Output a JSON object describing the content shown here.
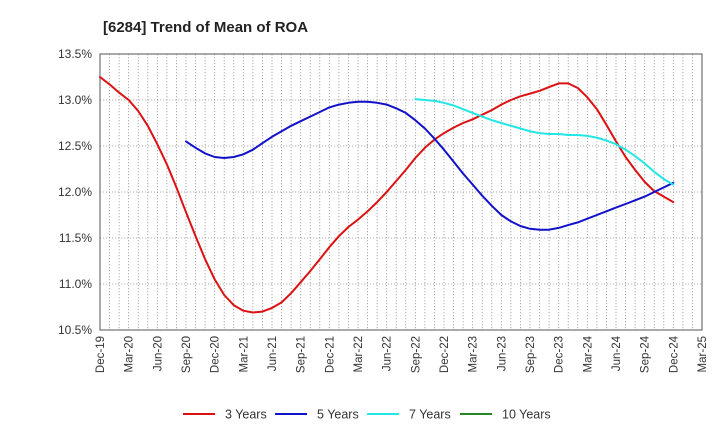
{
  "chart_data": {
    "type": "line",
    "title": "[6284]  Trend of Mean of ROA",
    "xlabel": "",
    "ylabel": "",
    "y_tick_labels": [
      "10.5%",
      "11.0%",
      "11.5%",
      "12.0%",
      "12.5%",
      "13.0%",
      "13.5%"
    ],
    "y_ticks": [
      10.5,
      11.0,
      11.5,
      12.0,
      12.5,
      13.0,
      13.5
    ],
    "ylim": [
      10.5,
      13.5
    ],
    "x_tick_labels": [
      "Dec-19",
      "Mar-20",
      "Jun-20",
      "Sep-20",
      "Dec-20",
      "Mar-21",
      "Jun-21",
      "Sep-21",
      "Dec-21",
      "Mar-22",
      "Jun-22",
      "Sep-22",
      "Dec-22",
      "Mar-23",
      "Jun-23",
      "Sep-23",
      "Dec-23",
      "Mar-24",
      "Jun-24",
      "Sep-24",
      "Dec-24",
      "Mar-25"
    ],
    "grid": true,
    "legend_position": "bottom",
    "series": [
      {
        "name": "3 Years",
        "color": "#dd1111",
        "x": [
          "Dec-19",
          "Jan-20",
          "Feb-20",
          "Mar-20",
          "Apr-20",
          "May-20",
          "Jun-20",
          "Jul-20",
          "Aug-20",
          "Sep-20",
          "Oct-20",
          "Nov-20",
          "Dec-20",
          "Jan-21",
          "Feb-21",
          "Mar-21",
          "Apr-21",
          "May-21",
          "Jun-21",
          "Jul-21",
          "Aug-21",
          "Sep-21",
          "Oct-21",
          "Nov-21",
          "Dec-21",
          "Jan-22",
          "Feb-22",
          "Mar-22",
          "Apr-22",
          "May-22",
          "Jun-22",
          "Jul-22",
          "Aug-22",
          "Sep-22",
          "Oct-22",
          "Nov-22",
          "Dec-22",
          "Jan-23",
          "Feb-23",
          "Mar-23",
          "Apr-23",
          "May-23",
          "Jun-23",
          "Jul-23",
          "Aug-23",
          "Sep-23",
          "Oct-23",
          "Nov-23",
          "Dec-23",
          "Jan-24",
          "Feb-24",
          "Mar-24",
          "Apr-24",
          "May-24",
          "Jun-24",
          "Jul-24",
          "Aug-24",
          "Sep-24",
          "Oct-24",
          "Nov-24",
          "Dec-24"
        ],
        "values": [
          13.25,
          13.17,
          13.08,
          13.0,
          12.88,
          12.72,
          12.52,
          12.3,
          12.05,
          11.78,
          11.52,
          11.27,
          11.05,
          10.88,
          10.77,
          10.71,
          10.69,
          10.7,
          10.74,
          10.8,
          10.9,
          11.02,
          11.14,
          11.27,
          11.4,
          11.52,
          11.62,
          11.7,
          11.79,
          11.89,
          12.0,
          12.12,
          12.24,
          12.37,
          12.48,
          12.57,
          12.64,
          12.7,
          12.75,
          12.79,
          12.84,
          12.89,
          12.95,
          13.0,
          13.04,
          13.07,
          13.1,
          13.14,
          13.18,
          13.18,
          13.13,
          13.03,
          12.9,
          12.73,
          12.55,
          12.38,
          12.24,
          12.11,
          12.01,
          11.95,
          11.89
        ]
      },
      {
        "name": "5 Years",
        "color": "#1111cc",
        "x": [
          "Sep-20",
          "Oct-20",
          "Nov-20",
          "Dec-20",
          "Jan-21",
          "Feb-21",
          "Mar-21",
          "Apr-21",
          "May-21",
          "Jun-21",
          "Jul-21",
          "Aug-21",
          "Sep-21",
          "Oct-21",
          "Nov-21",
          "Dec-21",
          "Jan-22",
          "Feb-22",
          "Mar-22",
          "Apr-22",
          "May-22",
          "Jun-22",
          "Jul-22",
          "Aug-22",
          "Sep-22",
          "Oct-22",
          "Nov-22",
          "Dec-22",
          "Jan-23",
          "Feb-23",
          "Mar-23",
          "Apr-23",
          "May-23",
          "Jun-23",
          "Jul-23",
          "Aug-23",
          "Sep-23",
          "Oct-23",
          "Nov-23",
          "Dec-23",
          "Jan-24",
          "Feb-24",
          "Mar-24",
          "Apr-24",
          "May-24",
          "Jun-24",
          "Jul-24",
          "Aug-24",
          "Sep-24",
          "Oct-24",
          "Nov-24",
          "Dec-24"
        ],
        "values": [
          12.55,
          12.48,
          12.42,
          12.38,
          12.37,
          12.38,
          12.41,
          12.46,
          12.53,
          12.6,
          12.66,
          12.72,
          12.77,
          12.82,
          12.87,
          12.92,
          12.95,
          12.97,
          12.98,
          12.98,
          12.97,
          12.95,
          12.91,
          12.86,
          12.78,
          12.69,
          12.58,
          12.46,
          12.33,
          12.2,
          12.08,
          11.96,
          11.85,
          11.75,
          11.68,
          11.63,
          11.6,
          11.59,
          11.59,
          11.61,
          11.64,
          11.67,
          11.71,
          11.75,
          11.79,
          11.83,
          11.87,
          11.91,
          11.95,
          12.0,
          12.05,
          12.1
        ]
      },
      {
        "name": "7 Years",
        "color": "#22e5e5",
        "x": [
          "Sep-22",
          "Oct-22",
          "Nov-22",
          "Dec-22",
          "Jan-23",
          "Feb-23",
          "Mar-23",
          "Apr-23",
          "May-23",
          "Jun-23",
          "Jul-23",
          "Aug-23",
          "Sep-23",
          "Oct-23",
          "Nov-23",
          "Dec-23",
          "Jan-24",
          "Feb-24",
          "Mar-24",
          "Apr-24",
          "May-24",
          "Jun-24",
          "Jul-24",
          "Aug-24",
          "Sep-24",
          "Oct-24",
          "Nov-24",
          "Dec-24"
        ],
        "values": [
          13.01,
          13.0,
          12.99,
          12.97,
          12.94,
          12.9,
          12.86,
          12.82,
          12.78,
          12.75,
          12.72,
          12.69,
          12.66,
          12.64,
          12.63,
          12.63,
          12.62,
          12.62,
          12.61,
          12.59,
          12.56,
          12.52,
          12.46,
          12.39,
          12.31,
          12.22,
          12.14,
          12.08
        ]
      },
      {
        "name": "10 Years",
        "color": "#228822",
        "x": [],
        "values": []
      }
    ]
  }
}
